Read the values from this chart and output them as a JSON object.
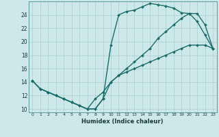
{
  "xlabel": "Humidex (Indice chaleur)",
  "xlim": [
    -0.5,
    23.5
  ],
  "ylim": [
    9.5,
    26.0
  ],
  "xticks": [
    0,
    1,
    2,
    3,
    4,
    5,
    6,
    7,
    8,
    9,
    10,
    11,
    12,
    13,
    14,
    15,
    16,
    17,
    18,
    19,
    20,
    21,
    22,
    23
  ],
  "yticks": [
    10,
    12,
    14,
    16,
    18,
    20,
    22,
    24
  ],
  "bg_color": "#cce8e8",
  "grid_color": "#aacece",
  "line_color": "#1a6b6b",
  "line_width": 1.0,
  "marker": "D",
  "marker_size": 2.0,
  "hours": [
    0,
    1,
    2,
    3,
    4,
    5,
    6,
    7,
    8,
    9,
    10,
    11,
    12,
    13,
    14,
    15,
    16,
    17,
    18,
    19,
    20,
    21,
    22,
    23
  ],
  "line1": [
    14.2,
    13.0,
    12.5,
    12.0,
    11.5,
    11.0,
    10.5,
    10.0,
    10.0,
    11.5,
    19.5,
    24.0,
    24.5,
    24.7,
    25.2,
    25.7,
    25.5,
    25.3,
    25.0,
    24.3,
    24.2,
    23.0,
    21.0,
    19.0
  ],
  "line2": [
    14.2,
    13.0,
    12.5,
    12.0,
    11.5,
    11.0,
    10.5,
    10.0,
    10.0,
    11.5,
    14.0,
    15.0,
    15.5,
    16.0,
    16.5,
    17.0,
    17.5,
    18.0,
    18.5,
    19.0,
    19.5,
    19.5,
    19.5,
    19.0
  ],
  "line3": [
    14.2,
    13.0,
    12.5,
    12.0,
    11.5,
    11.0,
    10.5,
    10.0,
    11.5,
    12.5,
    14.0,
    15.0,
    16.0,
    17.0,
    18.0,
    19.0,
    20.5,
    21.5,
    22.5,
    23.5,
    24.2,
    24.2,
    22.5,
    19.0
  ]
}
